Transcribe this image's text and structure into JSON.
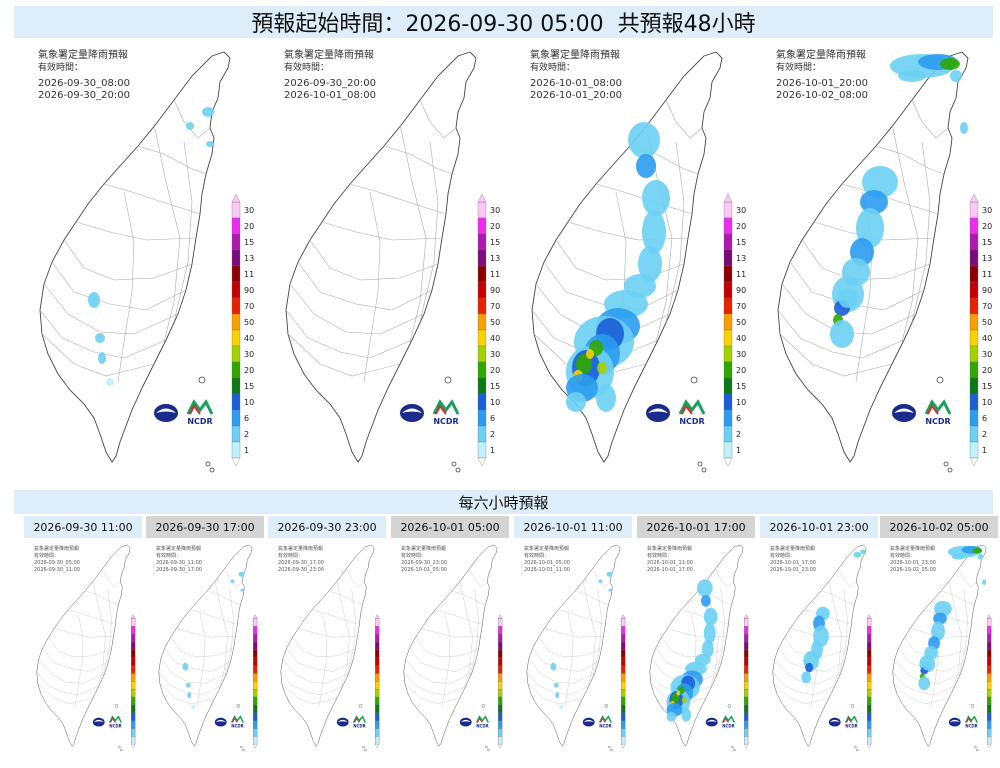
{
  "header": {
    "title": "預報起始時間：2026-09-30 05:00  共預報48小時"
  },
  "legend": {
    "levels": [
      "300",
      "200",
      "150",
      "130",
      "110",
      "90",
      "70",
      "50",
      "40",
      "30",
      "20",
      "15",
      "10",
      "6",
      "2",
      "1"
    ],
    "colors": [
      "#fdc8f8",
      "#ee2cf0",
      "#b019b0",
      "#7b0c7b",
      "#8e0000",
      "#c50000",
      "#e82200",
      "#f9a000",
      "#f9d200",
      "#a4d100",
      "#30a700",
      "#0c7a18",
      "#1b5fd8",
      "#2b9cf0",
      "#6bd0f4",
      "#bdf1fb"
    ]
  },
  "panels": [
    {
      "product": "氣象署定量降雨預報",
      "valid_label": "有效時間：",
      "start": "2026-09-30_08:00",
      "end": "2026-09-30_20:00",
      "rain": "low"
    },
    {
      "product": "氣象署定量降雨預報",
      "valid_label": "有效時間：",
      "start": "2026-09-30_20:00",
      "end": "2026-10-01_08:00",
      "rain": "none"
    },
    {
      "product": "氣象署定量降雨預報",
      "valid_label": "有效時間：",
      "start": "2026-10-01_08:00",
      "end": "2026-10-01_20:00",
      "rain": "southwest"
    },
    {
      "product": "氣象署定量降雨預報",
      "valid_label": "有效時間：",
      "start": "2026-10-01_20:00",
      "end": "2026-10-02_08:00",
      "rain": "north"
    }
  ],
  "logos": {
    "ncdr": "NCDR",
    "cwa_icon": "cwa-logo-icon"
  },
  "six_hour": {
    "title": "每六小時預報",
    "items": [
      {
        "time": "2026-09-30 11:00",
        "start": "2026-09-30_05:00",
        "end": "2026-09-30_11:00",
        "rain": "none"
      },
      {
        "time": "2026-09-30 17:00",
        "start": "2026-09-30_11:00",
        "end": "2026-09-30_17:00",
        "rain": "low"
      },
      {
        "time": "2026-09-30 23:00",
        "start": "2026-09-30_17:00",
        "end": "2026-09-30_23:00",
        "rain": "none"
      },
      {
        "time": "2026-10-01 05:00",
        "start": "2026-09-30_23:00",
        "end": "2026-10-01_05:00",
        "rain": "none"
      },
      {
        "time": "2026-10-01 11:00",
        "start": "2026-10-01_05:00",
        "end": "2026-10-01_11:00",
        "rain": "low"
      },
      {
        "time": "2026-10-01 17:00",
        "start": "2026-10-01_11:00",
        "end": "2026-10-01_17:00",
        "rain": "southwest"
      },
      {
        "time": "2026-10-01 23:00",
        "start": "2026-10-01_17:00",
        "end": "2026-10-01_23:00",
        "rain": "central"
      },
      {
        "time": "2026-10-02 05:00",
        "start": "2026-10-01_23:00",
        "end": "2026-10-02_05:00",
        "rain": "north"
      }
    ]
  }
}
